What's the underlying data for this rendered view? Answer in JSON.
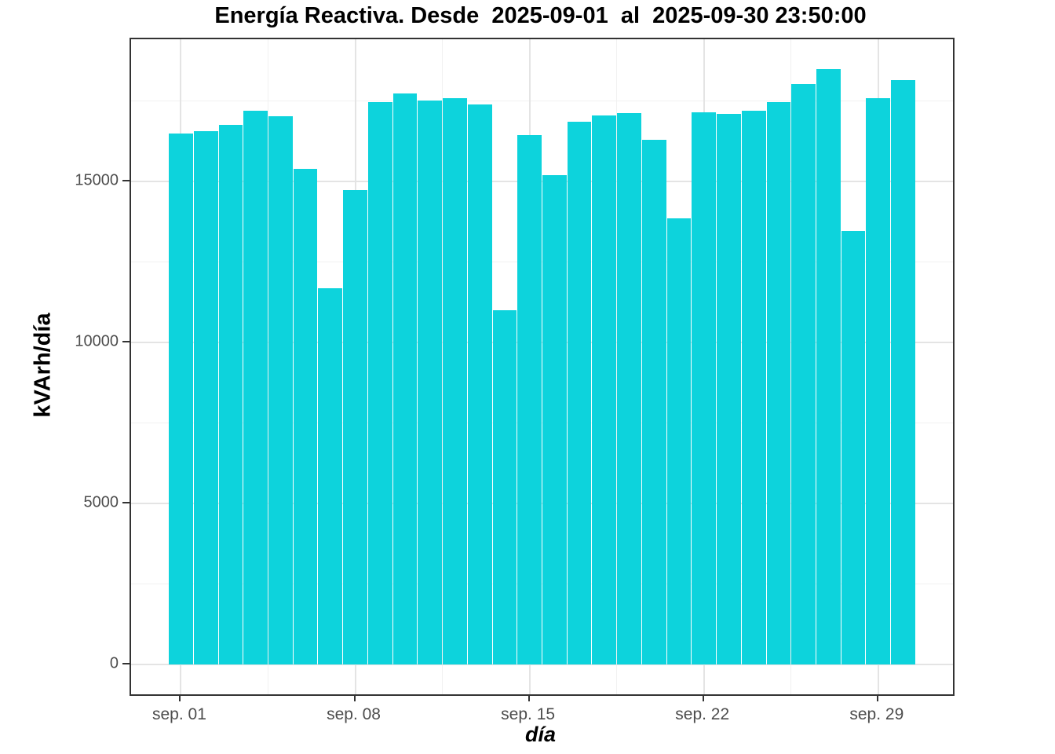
{
  "chart_data": {
    "type": "bar",
    "title": "Energía Reactiva. Desde  2025-09-01  al  2025-09-30 23:50:00",
    "xlabel": "día",
    "ylabel": "kVArh/día",
    "categories": [
      "2025-09-01",
      "2025-09-02",
      "2025-09-03",
      "2025-09-04",
      "2025-09-05",
      "2025-09-06",
      "2025-09-07",
      "2025-09-08",
      "2025-09-09",
      "2025-09-10",
      "2025-09-11",
      "2025-09-12",
      "2025-09-13",
      "2025-09-14",
      "2025-09-15",
      "2025-09-16",
      "2025-09-17",
      "2025-09-18",
      "2025-09-19",
      "2025-09-20",
      "2025-09-21",
      "2025-09-22",
      "2025-09-23",
      "2025-09-24",
      "2025-09-25",
      "2025-09-26",
      "2025-09-27",
      "2025-09-28",
      "2025-09-29",
      "2025-09-30"
    ],
    "values": [
      16480,
      16560,
      16770,
      17210,
      17030,
      15390,
      11690,
      14740,
      17460,
      17740,
      17520,
      17590,
      17400,
      11010,
      16440,
      15200,
      16870,
      17060,
      17130,
      16300,
      13850,
      17160,
      17090,
      17210,
      17480,
      18030,
      18500,
      13470,
      17590,
      18150
    ],
    "bar_color": "#0dd3dc",
    "y_ticks": [
      {
        "value": 0,
        "label": "0"
      },
      {
        "value": 5000,
        "label": "5000"
      },
      {
        "value": 10000,
        "label": "10000"
      },
      {
        "value": 15000,
        "label": "15000"
      }
    ],
    "y_minor": [
      2500,
      7500,
      12500,
      17500
    ],
    "x_ticks": [
      {
        "day": 1,
        "label": "sep. 01"
      },
      {
        "day": 8,
        "label": "sep. 08"
      },
      {
        "day": 15,
        "label": "sep. 15"
      },
      {
        "day": 22,
        "label": "sep. 22"
      },
      {
        "day": 29,
        "label": "sep. 29"
      }
    ],
    "x_minor_days": [
      4.5,
      11.5,
      18.5,
      25.5
    ],
    "ylim": [
      -930,
      19420
    ],
    "xlim_days": [
      -1,
      32
    ],
    "grid": true,
    "legend": "none"
  }
}
